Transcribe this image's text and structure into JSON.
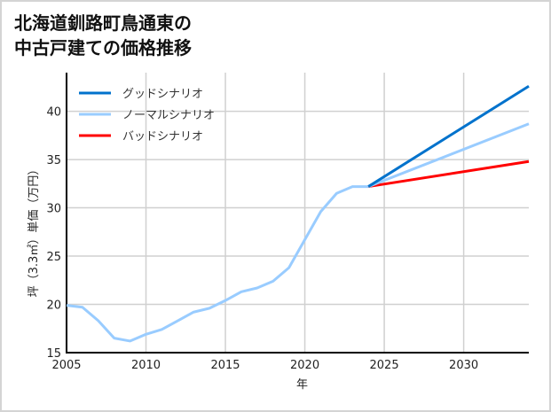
{
  "chart_data": {
    "type": "line",
    "title": "北海道釧路町鳥通東の\n中古戸建ての価格推移",
    "xlabel": "年",
    "ylabel": "坪（3.3㎡）単価（万円）",
    "xlim": [
      2005,
      2034.1
    ],
    "ylim": [
      15,
      44
    ],
    "xticks": [
      2005,
      2010,
      2015,
      2020,
      2025,
      2030
    ],
    "yticks": [
      15,
      20,
      25,
      30,
      35,
      40
    ],
    "grid": true,
    "legend_position": "top-left",
    "history": {
      "name": "ノーマルシナリオ",
      "color": "#99ccff",
      "x": [
        2005,
        2006,
        2007,
        2008,
        2009,
        2010,
        2011,
        2012,
        2013,
        2014,
        2015,
        2016,
        2017,
        2018,
        2019,
        2020,
        2021,
        2022,
        2023,
        2024
      ],
      "y": [
        19.9,
        19.7,
        18.3,
        16.5,
        16.2,
        16.9,
        17.4,
        18.3,
        19.2,
        19.6,
        20.4,
        21.3,
        21.7,
        22.4,
        23.8,
        26.7,
        29.6,
        31.5,
        32.2,
        32.2
      ]
    },
    "series": [
      {
        "name": "グッドシナリオ",
        "color": "#0072cc",
        "x": [
          2024,
          2034.1
        ],
        "y": [
          32.2,
          42.6
        ]
      },
      {
        "name": "ノーマルシナリオ",
        "color": "#99ccff",
        "x": [
          2024,
          2034.1
        ],
        "y": [
          32.2,
          38.7
        ]
      },
      {
        "name": "バッドシナリオ",
        "color": "#ff0000",
        "x": [
          2024,
          2034.1
        ],
        "y": [
          32.2,
          34.8
        ]
      }
    ]
  }
}
